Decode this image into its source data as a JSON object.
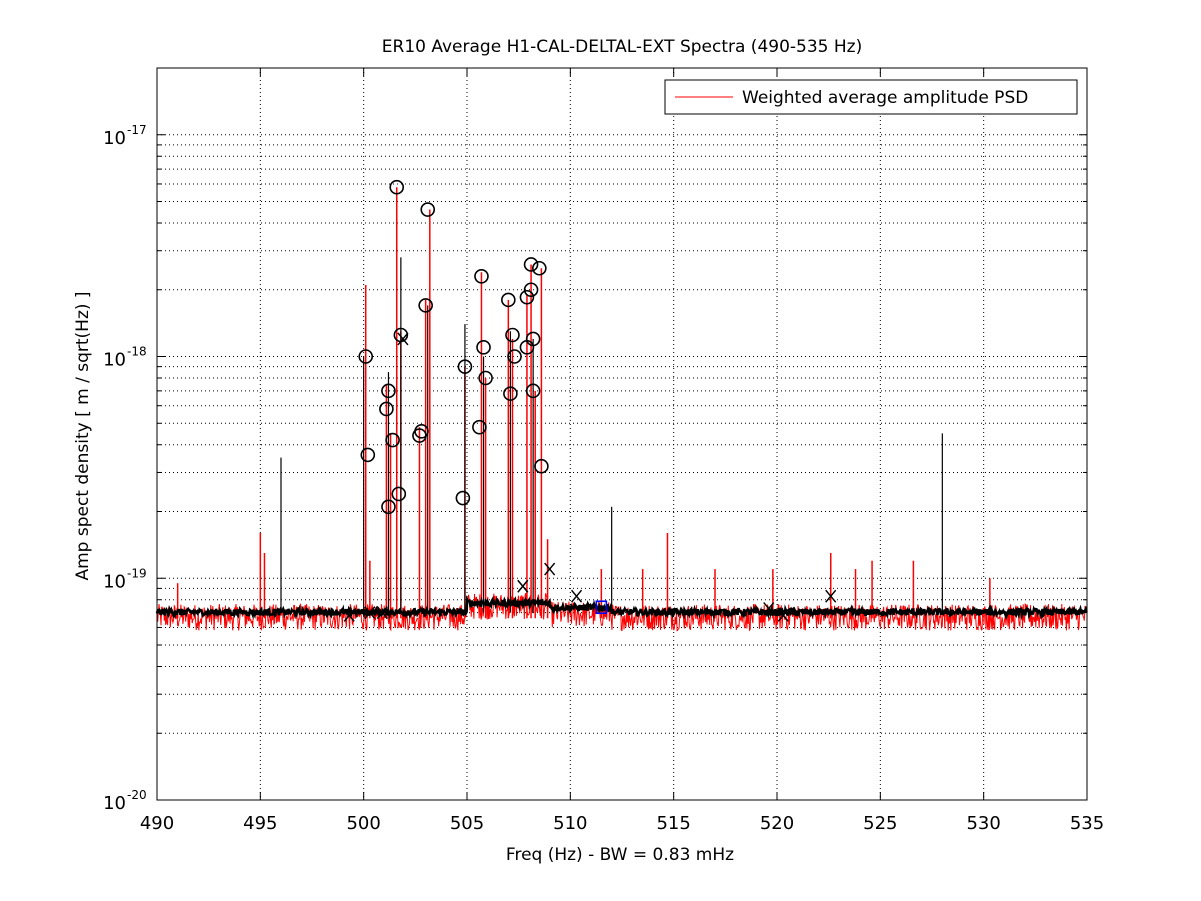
{
  "chart_data": {
    "type": "line",
    "title": "ER10 Average H1-CAL-DELTAL-EXT Spectra (490-535 Hz)",
    "xlabel": "Freq (Hz) - BW = 0.83 mHz",
    "ylabel": "Amp spect density [ m / sqrt(Hz) ]",
    "xlim": [
      490,
      535
    ],
    "ylim": [
      1e-20,
      2e-17
    ],
    "yscale": "log",
    "grid": true,
    "x_ticks": [
      490,
      495,
      500,
      505,
      510,
      515,
      520,
      525,
      530,
      535
    ],
    "x_tick_labels": [
      "490",
      "495",
      "500",
      "505",
      "510",
      "515",
      "520",
      "525",
      "530",
      "535"
    ],
    "y_ticks": [
      {
        "value": 1e-20,
        "base": "10",
        "exp": "-20"
      },
      {
        "value": 1e-19,
        "base": "10",
        "exp": "-19"
      },
      {
        "value": 1e-18,
        "base": "10",
        "exp": "-18"
      },
      {
        "value": 1e-17,
        "base": "10",
        "exp": "-17"
      }
    ],
    "legend": {
      "position": "top-right",
      "entries": [
        {
          "label": "Weighted average amplitude PSD",
          "color": "#ff0000"
        }
      ]
    },
    "series": [
      {
        "name": "Weighted average amplitude PSD",
        "color": "#ff0000",
        "baseline": 6.6e-20,
        "spikes": [
          {
            "x": 491.0,
            "y": 9.5e-20
          },
          {
            "x": 495.0,
            "y": 1.6e-19
          },
          {
            "x": 495.2,
            "y": 1.3e-19
          },
          {
            "x": 500.1,
            "y": 2.1e-18
          },
          {
            "x": 500.3,
            "y": 1.2e-19
          },
          {
            "x": 501.1,
            "y": 7.5e-19
          },
          {
            "x": 501.3,
            "y": 4.5e-19
          },
          {
            "x": 501.6,
            "y": 5.8e-18
          },
          {
            "x": 501.8,
            "y": 1.3e-18
          },
          {
            "x": 502.7,
            "y": 4.8e-19
          },
          {
            "x": 503.0,
            "y": 1.8e-18
          },
          {
            "x": 503.2,
            "y": 4.6e-18
          },
          {
            "x": 504.9,
            "y": 9e-19
          },
          {
            "x": 505.7,
            "y": 2.4e-18
          },
          {
            "x": 505.9,
            "y": 8e-19
          },
          {
            "x": 507.0,
            "y": 1.8e-18
          },
          {
            "x": 507.2,
            "y": 1.2e-18
          },
          {
            "x": 507.9,
            "y": 1.9e-18
          },
          {
            "x": 508.1,
            "y": 2.6e-18
          },
          {
            "x": 508.3,
            "y": 7e-19
          },
          {
            "x": 508.6,
            "y": 2.5e-18
          },
          {
            "x": 508.9,
            "y": 1.5e-19
          },
          {
            "x": 511.5,
            "y": 1.1e-19
          },
          {
            "x": 513.5,
            "y": 1.1e-19
          },
          {
            "x": 514.7,
            "y": 1.6e-19
          },
          {
            "x": 517.0,
            "y": 1.1e-19
          },
          {
            "x": 519.8,
            "y": 1.1e-19
          },
          {
            "x": 522.6,
            "y": 1.3e-19
          },
          {
            "x": 523.8,
            "y": 1.1e-19
          },
          {
            "x": 524.6,
            "y": 1.2e-19
          },
          {
            "x": 526.6,
            "y": 1.2e-19
          },
          {
            "x": 530.3,
            "y": 1e-19
          }
        ]
      },
      {
        "name": "",
        "color": "#000000",
        "baseline": 7e-20,
        "spikes": [
          {
            "x": 496.0,
            "y": 3.5e-19
          },
          {
            "x": 500.0,
            "y": 1e-18
          },
          {
            "x": 501.2,
            "y": 8.5e-19
          },
          {
            "x": 501.8,
            "y": 2.8e-18
          },
          {
            "x": 503.1,
            "y": 1.7e-18
          },
          {
            "x": 504.9,
            "y": 1.4e-18
          },
          {
            "x": 505.8,
            "y": 1e-18
          },
          {
            "x": 507.1,
            "y": 1.3e-18
          },
          {
            "x": 508.2,
            "y": 1.2e-18
          },
          {
            "x": 512.0,
            "y": 2.1e-19
          },
          {
            "x": 528.0,
            "y": 4.5e-19
          }
        ]
      }
    ],
    "markers": [
      {
        "symbol": "O",
        "color": "#000000",
        "x": 500.1,
        "y": 1e-18
      },
      {
        "symbol": "O",
        "color": "#000000",
        "x": 500.2,
        "y": 3.6e-19
      },
      {
        "symbol": "O",
        "color": "#000000",
        "x": 501.1,
        "y": 5.8e-19
      },
      {
        "symbol": "O",
        "color": "#000000",
        "x": 501.2,
        "y": 7e-19
      },
      {
        "symbol": "O",
        "color": "#000000",
        "x": 501.2,
        "y": 2.1e-19
      },
      {
        "symbol": "O",
        "color": "#000000",
        "x": 501.4,
        "y": 4.2e-19
      },
      {
        "symbol": "O",
        "color": "#000000",
        "x": 501.6,
        "y": 5.8e-18
      },
      {
        "symbol": "O",
        "color": "#000000",
        "x": 501.7,
        "y": 2.4e-19
      },
      {
        "symbol": "O",
        "color": "#000000",
        "x": 501.8,
        "y": 1.25e-18
      },
      {
        "symbol": "O",
        "color": "#000000",
        "x": 502.7,
        "y": 4.4e-19
      },
      {
        "symbol": "O",
        "color": "#000000",
        "x": 502.8,
        "y": 4.6e-19
      },
      {
        "symbol": "O",
        "color": "#000000",
        "x": 503.0,
        "y": 1.7e-18
      },
      {
        "symbol": "O",
        "color": "#000000",
        "x": 503.1,
        "y": 4.6e-18
      },
      {
        "symbol": "O",
        "color": "#000000",
        "x": 504.8,
        "y": 2.3e-19
      },
      {
        "symbol": "O",
        "color": "#000000",
        "x": 504.9,
        "y": 9e-19
      },
      {
        "symbol": "O",
        "color": "#000000",
        "x": 505.6,
        "y": 4.8e-19
      },
      {
        "symbol": "O",
        "color": "#000000",
        "x": 505.7,
        "y": 2.3e-18
      },
      {
        "symbol": "O",
        "color": "#000000",
        "x": 505.8,
        "y": 1.1e-18
      },
      {
        "symbol": "O",
        "color": "#000000",
        "x": 505.9,
        "y": 8e-19
      },
      {
        "symbol": "O",
        "color": "#000000",
        "x": 507.0,
        "y": 1.8e-18
      },
      {
        "symbol": "O",
        "color": "#000000",
        "x": 507.1,
        "y": 6.8e-19
      },
      {
        "symbol": "O",
        "color": "#000000",
        "x": 507.2,
        "y": 1.25e-18
      },
      {
        "symbol": "O",
        "color": "#000000",
        "x": 507.3,
        "y": 1e-18
      },
      {
        "symbol": "O",
        "color": "#000000",
        "x": 507.9,
        "y": 1.1e-18
      },
      {
        "symbol": "O",
        "color": "#000000",
        "x": 507.9,
        "y": 1.85e-18
      },
      {
        "symbol": "O",
        "color": "#000000",
        "x": 508.1,
        "y": 2e-18
      },
      {
        "symbol": "O",
        "color": "#000000",
        "x": 508.1,
        "y": 2.6e-18
      },
      {
        "symbol": "O",
        "color": "#000000",
        "x": 508.2,
        "y": 1.2e-18
      },
      {
        "symbol": "O",
        "color": "#000000",
        "x": 508.2,
        "y": 7e-19
      },
      {
        "symbol": "O",
        "color": "#000000",
        "x": 508.5,
        "y": 2.5e-18
      },
      {
        "symbol": "O",
        "color": "#000000",
        "x": 508.6,
        "y": 3.2e-19
      },
      {
        "symbol": "X",
        "color": "#000000",
        "x": 499.3,
        "y": 6.8e-20
      },
      {
        "symbol": "X",
        "color": "#000000",
        "x": 500.3,
        "y": 7e-20
      },
      {
        "symbol": "X",
        "color": "#000000",
        "x": 500.9,
        "y": 7e-20
      },
      {
        "symbol": "X",
        "color": "#000000",
        "x": 501.9,
        "y": 1.2e-18
      },
      {
        "symbol": "X",
        "color": "#000000",
        "x": 507.7,
        "y": 9.2e-20
      },
      {
        "symbol": "X",
        "color": "#000000",
        "x": 509.0,
        "y": 1.1e-19
      },
      {
        "symbol": "X",
        "color": "#000000",
        "x": 510.3,
        "y": 8.3e-20
      },
      {
        "symbol": "X",
        "color": "#000000",
        "x": 519.6,
        "y": 7.3e-20
      },
      {
        "symbol": "X",
        "color": "#000000",
        "x": 520.3,
        "y": 6.8e-20
      },
      {
        "symbol": "X",
        "color": "#000000",
        "x": 522.6,
        "y": 8.3e-20
      },
      {
        "symbol": "D",
        "color": "#0000ff",
        "x": 511.5,
        "y": 7.4e-20
      }
    ]
  }
}
